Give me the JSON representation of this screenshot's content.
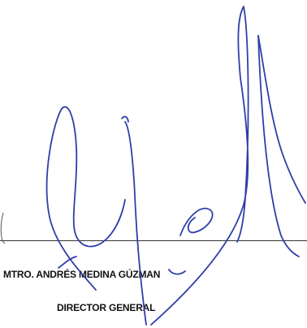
{
  "signature_block": {
    "name": "MTRO. ANDRÉS MEDINA GÚZMAN",
    "title": "DIRECTOR GENERAL",
    "ink_color": "#2f3ea8"
  }
}
